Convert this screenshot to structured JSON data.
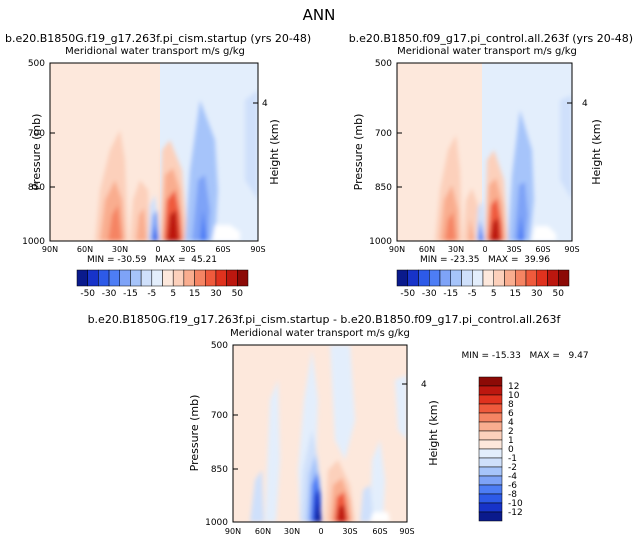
{
  "page": {
    "title": "ANN"
  },
  "panels": [
    {
      "key": "left",
      "title": "b.e20.B1850G.f19_g17.263f.pi_cism.startup (yrs 20-48)",
      "subtitle": "Meridional water transport m/s g/kg",
      "ylabel": "Pressure (mb)",
      "ylabel2": "Height (km)",
      "stats": "MIN = -30.59   MAX =  45.21"
    },
    {
      "key": "right",
      "title": "b.e20.B1850.f09_g17.pi_control.all.263f (yrs 20-48)",
      "subtitle": "Meridional water transport m/s g/kg",
      "ylabel": "Pressure (mb)",
      "ylabel2": "Height (km)",
      "stats": "MIN = -23.35   MAX =  39.96"
    },
    {
      "key": "diff",
      "title": "b.e20.B1850G.f19_g17.263f.pi_cism.startup - b.e20.B1850.f09_g17.pi_control.all.263f",
      "subtitle": "Meridional water transport m/s g/kg",
      "ylabel": "Pressure (mb)",
      "ylabel2": "Height (km)",
      "stats": "MIN = -15.33   MAX =   9.47"
    }
  ],
  "chart_data": [
    {
      "type": "heatmap",
      "title": "b.e20.B1850G.f19_g17.263f.pi_cism.startup (yrs 20-48)",
      "subtitle": "Meridional water transport m/s g/kg",
      "xlabel": "",
      "ylabel": "Pressure (mb)",
      "ylabel_right": "Height (km)",
      "x_ticks": [
        "90N",
        "60N",
        "30N",
        "0",
        "30S",
        "60S",
        "90S"
      ],
      "y_ticks": [
        500,
        700,
        850,
        1000
      ],
      "y_ticks_right": [
        4
      ],
      "ylim": [
        1000,
        500
      ],
      "min": -30.59,
      "max": 45.21,
      "colorbar_levels": [
        -50,
        -30,
        -15,
        -5,
        5,
        15,
        30,
        50
      ],
      "colorbar_colors": [
        "#0a1a8c",
        "#1733c9",
        "#2d5ae8",
        "#4d7df5",
        "#7ea3f7",
        "#a6c4fa",
        "#cfe0fb",
        "#e3eefc",
        "#fde8dc",
        "#fcd0bb",
        "#f9ad8f",
        "#f58463",
        "#ef5a3c",
        "#e0321e",
        "#bc170f",
        "#8c0a06"
      ]
    },
    {
      "type": "heatmap",
      "title": "b.e20.B1850.f09_g17.pi_control.all.263f (yrs 20-48)",
      "subtitle": "Meridional water transport m/s g/kg",
      "xlabel": "",
      "ylabel": "Pressure (mb)",
      "ylabel_right": "Height (km)",
      "x_ticks": [
        "90N",
        "60N",
        "30N",
        "0",
        "30S",
        "60S",
        "90S"
      ],
      "y_ticks": [
        500,
        700,
        850,
        1000
      ],
      "y_ticks_right": [
        4
      ],
      "ylim": [
        1000,
        500
      ],
      "min": -23.35,
      "max": 39.96,
      "colorbar_levels": [
        -50,
        -30,
        -15,
        -5,
        5,
        15,
        30,
        50
      ],
      "colorbar_colors": [
        "#0a1a8c",
        "#1733c9",
        "#2d5ae8",
        "#4d7df5",
        "#7ea3f7",
        "#a6c4fa",
        "#cfe0fb",
        "#e3eefc",
        "#fde8dc",
        "#fcd0bb",
        "#f9ad8f",
        "#f58463",
        "#ef5a3c",
        "#e0321e",
        "#bc170f",
        "#8c0a06"
      ]
    },
    {
      "type": "heatmap",
      "title": "b.e20.B1850G.f19_g17.263f.pi_cism.startup - b.e20.B1850.f09_g17.pi_control.all.263f",
      "subtitle": "Meridional water transport m/s g/kg",
      "xlabel": "",
      "ylabel": "Pressure (mb)",
      "ylabel_right": "Height (km)",
      "x_ticks": [
        "90N",
        "60N",
        "30N",
        "0",
        "30S",
        "60S",
        "90S"
      ],
      "y_ticks": [
        500,
        700,
        850,
        1000
      ],
      "y_ticks_right": [
        4
      ],
      "ylim": [
        1000,
        500
      ],
      "min": -15.33,
      "max": 9.47,
      "colorbar_levels": [
        12,
        10,
        8,
        6,
        4,
        2,
        1,
        0,
        -1,
        -2,
        -4,
        -6,
        -8,
        -10,
        -12
      ],
      "colorbar_colors": [
        "#8c0a06",
        "#bc170f",
        "#e0321e",
        "#ef5a3c",
        "#f58463",
        "#f9ad8f",
        "#fcd0bb",
        "#fde8dc",
        "#e3eefc",
        "#cfe0fb",
        "#a6c4fa",
        "#7ea3f7",
        "#4d7df5",
        "#2d5ae8",
        "#1733c9",
        "#0a1a8c"
      ]
    }
  ]
}
